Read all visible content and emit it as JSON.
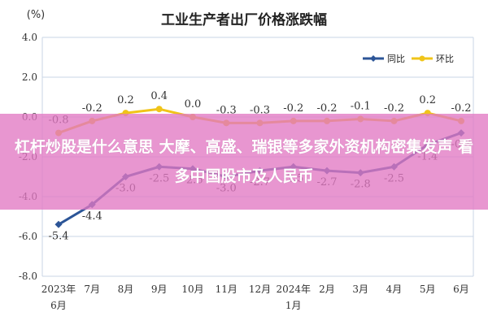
{
  "colors": {
    "yoy": "#2c5597",
    "mom": "#f0c419",
    "grid": "#c9d4e6",
    "axis_text": "#333333",
    "overlay": "#e278c3"
  },
  "overlay": {
    "headline": "杠杆炒股是什么意思 大摩、高盛、瑞银等多家外资机构密集发声 看多中国股市及人民币"
  },
  "chart_data": {
    "type": "line",
    "title": "工业生产者出厂价格涨跌幅",
    "ylabel": "(%)",
    "xlabel": "",
    "ylim": [
      -8.0,
      4.0
    ],
    "yticks": [
      "4.0",
      "2.0",
      "0.0",
      "-2.0",
      "-4.0",
      "-6.0",
      "-8.0"
    ],
    "grid": true,
    "legend_position": "top-right",
    "categories": [
      [
        "2023年",
        "6月"
      ],
      [
        "7月"
      ],
      [
        "8月"
      ],
      [
        "9月"
      ],
      [
        "10月"
      ],
      [
        "11月"
      ],
      [
        "12月"
      ],
      [
        "2024年",
        "1月"
      ],
      [
        "2月"
      ],
      [
        "3月"
      ],
      [
        "4月"
      ],
      [
        "5月"
      ],
      [
        "6月"
      ]
    ],
    "series": [
      {
        "name": "同比",
        "values": [
          -5.4,
          -4.4,
          -3.0,
          -2.5,
          -2.6,
          -3.0,
          -2.7,
          -2.5,
          -2.7,
          -2.8,
          -2.5,
          -1.4,
          -0.8
        ],
        "labels": [
          "-5.4",
          "-4.4",
          "-3.0",
          "-2.5",
          "-2.6",
          "-3.0",
          "-2.7",
          "-2.5",
          "-2.7",
          "-2.8",
          "-2.5",
          "-1.4",
          "-0.8"
        ]
      },
      {
        "name": "环比",
        "values": [
          -0.8,
          -0.2,
          0.2,
          0.4,
          0.0,
          -0.3,
          -0.3,
          -0.2,
          -0.2,
          -0.1,
          -0.2,
          0.2,
          -0.2
        ],
        "labels": [
          "-0.8",
          "-0.2",
          "0.2",
          "0.4",
          "0.0",
          "-0.3",
          "-0.3",
          "-0.2",
          "-0.2",
          "-0.1",
          "-0.2",
          "0.2",
          "-0.2"
        ]
      }
    ]
  }
}
